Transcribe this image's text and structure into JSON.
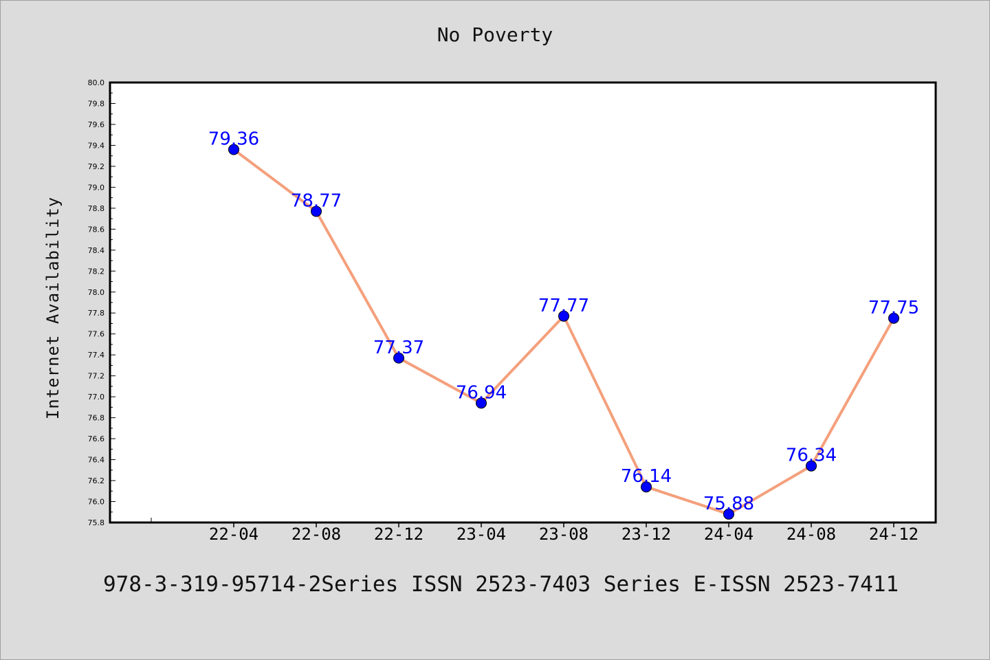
{
  "chart_data": {
    "type": "line",
    "title": "No Poverty",
    "xlabel": "",
    "ylabel": "Internet Availability",
    "categories": [
      "22-04",
      "22-08",
      "22-12",
      "23-04",
      "23-08",
      "23-12",
      "24-04",
      "24-08",
      "24-12"
    ],
    "series": [
      {
        "values": [
          79.36,
          78.77,
          77.37,
          76.94,
          77.77,
          76.14,
          75.88,
          76.34,
          77.75
        ],
        "labels": [
          "79.36",
          "78.77",
          "77.37",
          "76.94",
          "77.77",
          "76.14",
          "75.88",
          "76.34",
          "77.75"
        ],
        "line_color": "#f4a07c",
        "marker_color": "#0000ff",
        "label_color": "#0000ff"
      }
    ],
    "ylim": [
      75.8,
      80.0
    ],
    "yticks": [
      "75.8",
      "76.0",
      "76.2",
      "76.4",
      "76.6",
      "76.8",
      "77.0",
      "77.2",
      "77.4",
      "77.6",
      "77.8",
      "78.0",
      "78.2",
      "78.4",
      "78.6",
      "78.8",
      "79.0",
      "79.2",
      "79.4",
      "79.6",
      "79.8",
      "80.0"
    ],
    "grid": false,
    "legend": "none"
  },
  "footer": "978-3-319-95714-2Series ISSN 2523-7403 Series E-ISSN 2523-7411",
  "colors": {
    "background": "#dcdcdc",
    "plot_background": "#ffffff",
    "axis": "#000000"
  }
}
